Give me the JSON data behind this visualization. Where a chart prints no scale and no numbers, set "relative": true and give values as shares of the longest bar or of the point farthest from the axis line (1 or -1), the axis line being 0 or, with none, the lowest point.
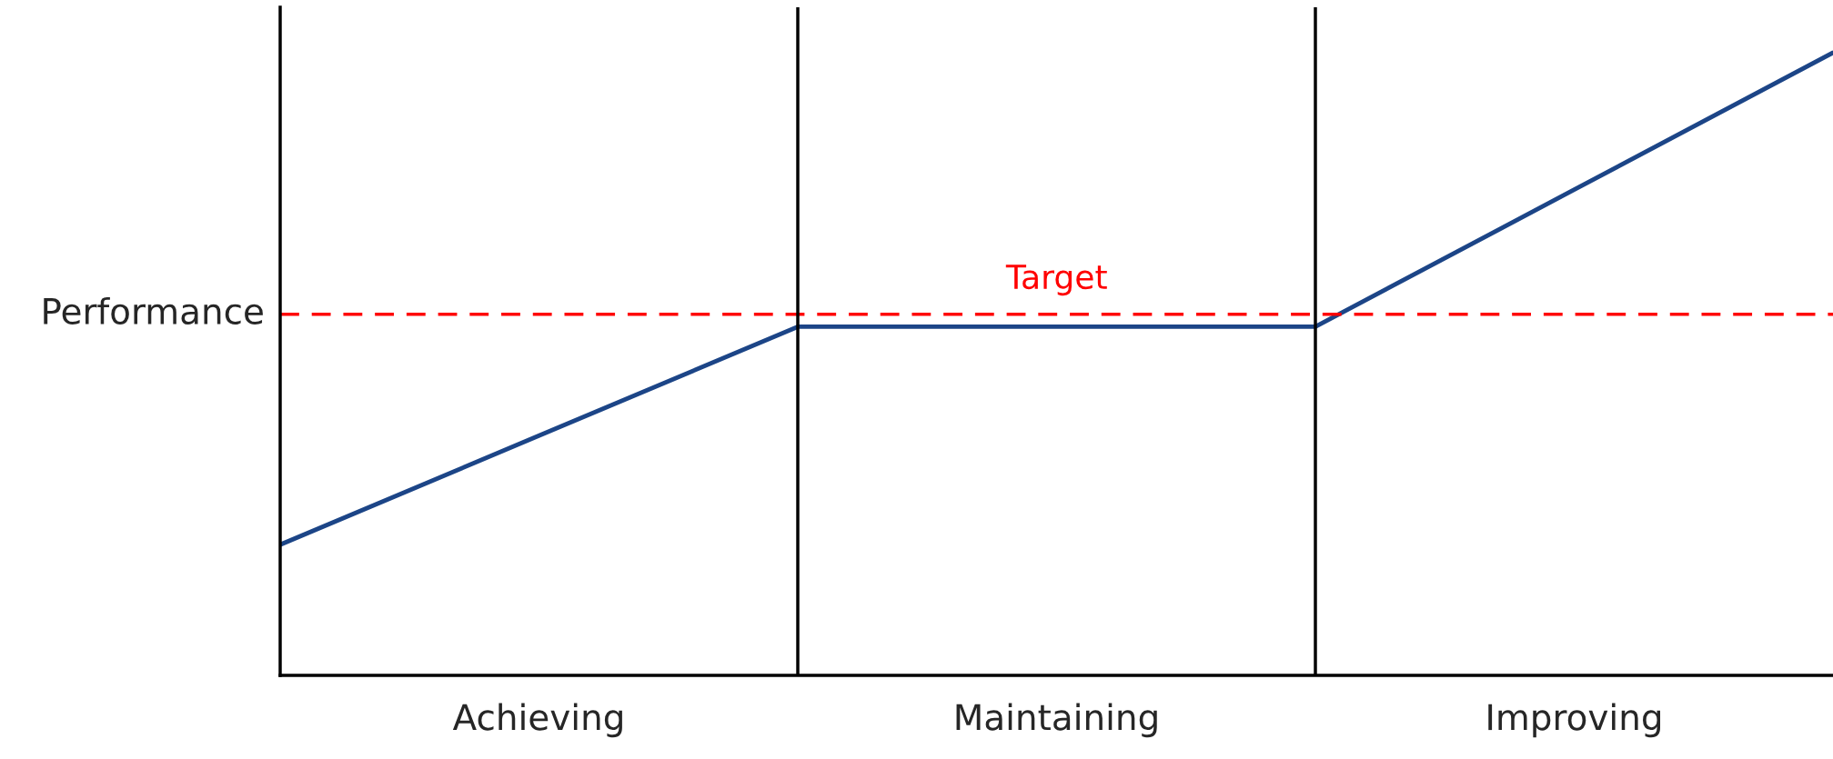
{
  "chart_data": {
    "type": "line",
    "relative": true,
    "ylabel": "Performance",
    "categories": [
      null,
      "Achieving",
      null,
      "Maintaining",
      null,
      "Improving",
      null
    ],
    "series": [
      {
        "color": "#1c4587",
        "values": [
          0.21,
          0.385,
          0.56,
          0.56,
          0.56,
          0.78,
          1
        ]
      }
    ],
    "ref_lines": [
      {
        "axis": "y",
        "value": 0.58,
        "label": "Target",
        "color": "#ff0000",
        "line_style": "dashed"
      }
    ],
    "grid": "x",
    "legend": false,
    "marker": "none",
    "line_style": "solid"
  }
}
